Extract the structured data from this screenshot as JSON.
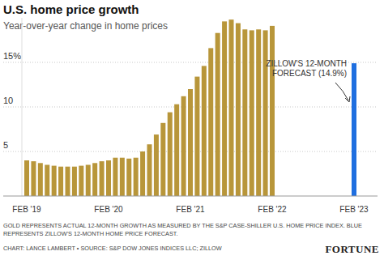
{
  "chart_data": {
    "type": "bar",
    "title": "U.S. home price growth",
    "subtitle": "Year-over-year change in home prices",
    "categories": [
      "FEB '19",
      null,
      null,
      null,
      null,
      null,
      null,
      null,
      null,
      null,
      null,
      null,
      "FEB '20",
      null,
      null,
      null,
      null,
      null,
      null,
      null,
      null,
      null,
      null,
      null,
      "FEB '21",
      null,
      null,
      null,
      null,
      null,
      null,
      null,
      null,
      null,
      null,
      null,
      "FEB '22",
      null,
      null,
      null,
      null,
      null,
      null,
      null,
      null,
      null,
      null,
      null,
      "FEB '23"
    ],
    "series": [
      {
        "color": "#b8963a",
        "values": [
          4.0,
          3.9,
          3.7,
          3.5,
          3.4,
          3.3,
          3.3,
          3.3,
          3.4,
          3.5,
          3.7,
          3.9,
          4.0,
          4.3,
          4.3,
          4.2,
          4.3,
          5.0,
          5.8,
          6.9,
          8.2,
          9.4,
          10.3,
          11.2,
          12.0,
          13.4,
          14.6,
          16.6,
          18.3,
          19.6,
          19.8,
          19.4,
          18.7,
          18.6,
          18.7,
          18.6,
          19.1,
          null,
          null,
          null,
          null,
          null,
          null,
          null,
          null,
          null,
          null,
          null,
          null
        ]
      },
      {
        "color": "#1f6fe0",
        "values": [
          null,
          null,
          null,
          null,
          null,
          null,
          null,
          null,
          null,
          null,
          null,
          null,
          null,
          null,
          null,
          null,
          null,
          null,
          null,
          null,
          null,
          null,
          null,
          null,
          null,
          null,
          null,
          null,
          null,
          null,
          null,
          null,
          null,
          null,
          null,
          null,
          null,
          null,
          null,
          null,
          null,
          null,
          null,
          null,
          null,
          null,
          null,
          null,
          14.9
        ]
      }
    ],
    "annotation": [
      "ZILLOW'S 12-MONTH",
      "FORECAST (14.9%)"
    ],
    "note": [
      "GOLD REPRESENTS ACTUAL 12-MONTH GROWTH AS MEASURED BY THE S&P CASE-SHILLER U.S. HOME PRICE INDEX. BLUE",
      "REPRESENTS ZILLOW'S 12-MONTH HOME PRICE FORECAST."
    ],
    "source": "CHART: LANCE LAMBERT • SOURCE: S&P DOW JONES INDICES LLC; ZILLOW",
    "brand": "FORTUNE",
    "ylim": [
      0,
      20
    ],
    "yticks": [
      5,
      10,
      {
        "value": 15,
        "label": "15%"
      }
    ],
    "grid": true
  }
}
